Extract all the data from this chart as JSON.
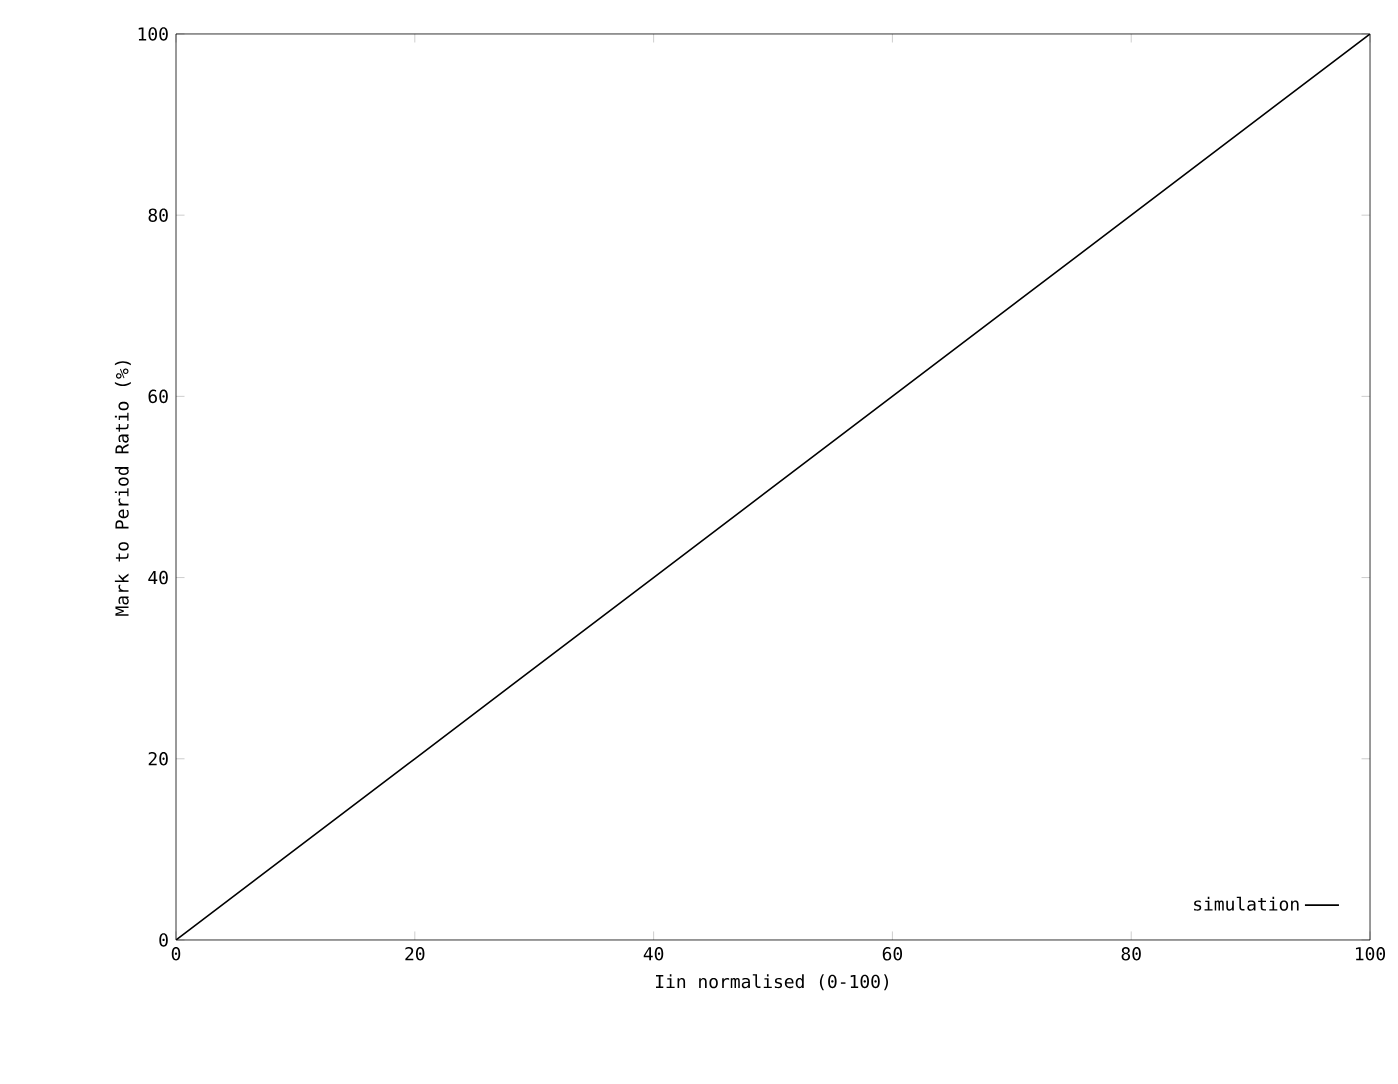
{
  "chart_data": {
    "type": "line",
    "xlabel": "Iin normalised (0-100)",
    "ylabel": "Mark to Period Ratio (%)",
    "x": [
      0,
      20,
      40,
      60,
      80,
      100
    ],
    "series": [
      {
        "name": "simulation",
        "color": "#000000",
        "values": [
          0,
          20,
          40,
          60,
          80,
          100
        ]
      }
    ],
    "xlim": [
      0,
      100
    ],
    "ylim": [
      0,
      100
    ],
    "xticks": [
      0,
      20,
      40,
      60,
      80,
      100
    ],
    "yticks": [
      0,
      20,
      40,
      60,
      80,
      100
    ],
    "legend": "bottom right",
    "marker": "none",
    "line_style": "solid",
    "grid": false
  }
}
